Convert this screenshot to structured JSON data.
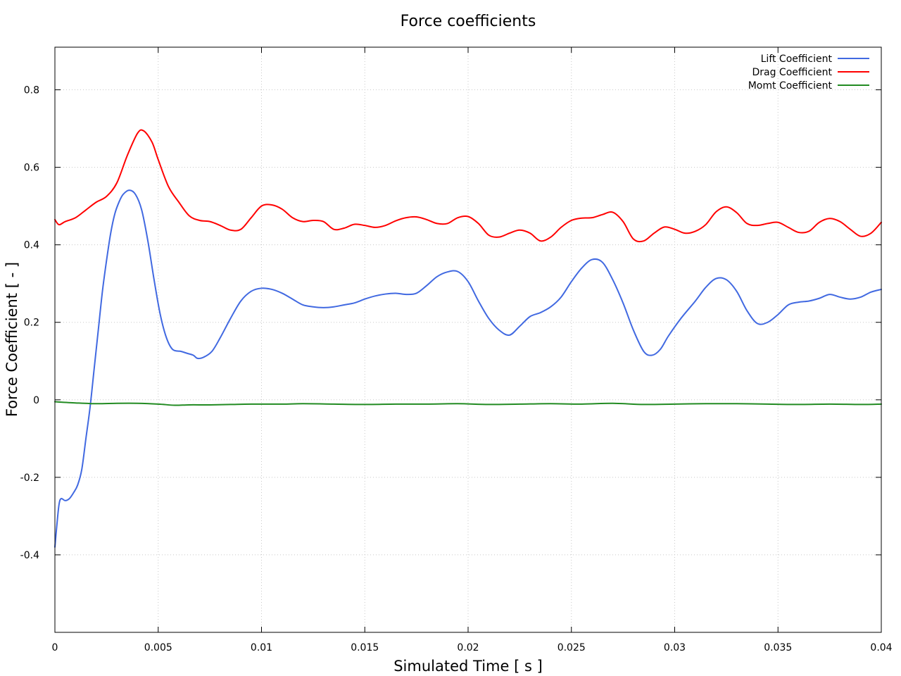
{
  "chart_data": {
    "type": "line",
    "title": "Force coefficients",
    "xlabel": "Simulated Time [ s ]",
    "ylabel": "Force Coefficient [ - ]",
    "xlim": [
      0,
      0.04
    ],
    "ylim": [
      -0.6,
      0.91
    ],
    "xticks": [
      0,
      0.005,
      0.01,
      0.015,
      0.02,
      0.025,
      0.03,
      0.035,
      0.04
    ],
    "xtick_labels": [
      "0",
      "0.005",
      "0.01",
      "0.015",
      "0.02",
      "0.025",
      "0.03",
      "0.035",
      "0.04"
    ],
    "yticks": [
      -0.4,
      -0.2,
      0,
      0.2,
      0.4,
      0.6,
      0.8
    ],
    "ytick_labels": [
      "-0.4",
      "-0.2",
      "0",
      "0.2",
      "0.4",
      "0.6",
      "0.8"
    ],
    "grid": true,
    "legend_position": "top-right",
    "series": [
      {
        "name": "Lift Coefficient",
        "color": "#4169e1",
        "points": [
          [
            0,
            -0.38
          ],
          [
            0.0001,
            -0.32
          ],
          [
            0.0002,
            -0.27
          ],
          [
            0.0003,
            -0.255
          ],
          [
            0.0005,
            -0.26
          ],
          [
            0.0007,
            -0.255
          ],
          [
            0.0009,
            -0.24
          ],
          [
            0.0011,
            -0.22
          ],
          [
            0.0013,
            -0.18
          ],
          [
            0.0015,
            -0.1
          ],
          [
            0.0017,
            -0.02
          ],
          [
            0.0019,
            0.08
          ],
          [
            0.0021,
            0.18
          ],
          [
            0.0023,
            0.28
          ],
          [
            0.0025,
            0.36
          ],
          [
            0.0027,
            0.43
          ],
          [
            0.0029,
            0.48
          ],
          [
            0.0031,
            0.51
          ],
          [
            0.0033,
            0.53
          ],
          [
            0.0036,
            0.541
          ],
          [
            0.0039,
            0.53
          ],
          [
            0.0042,
            0.49
          ],
          [
            0.0045,
            0.41
          ],
          [
            0.0048,
            0.31
          ],
          [
            0.0051,
            0.22
          ],
          [
            0.0054,
            0.16
          ],
          [
            0.0057,
            0.13
          ],
          [
            0.0061,
            0.125
          ],
          [
            0.0064,
            0.12
          ],
          [
            0.0067,
            0.115
          ],
          [
            0.0069,
            0.107
          ],
          [
            0.0072,
            0.11
          ],
          [
            0.0076,
            0.125
          ],
          [
            0.008,
            0.16
          ],
          [
            0.0085,
            0.21
          ],
          [
            0.009,
            0.255
          ],
          [
            0.0095,
            0.28
          ],
          [
            0.01,
            0.288
          ],
          [
            0.0105,
            0.285
          ],
          [
            0.011,
            0.275
          ],
          [
            0.0115,
            0.26
          ],
          [
            0.012,
            0.245
          ],
          [
            0.0125,
            0.24
          ],
          [
            0.013,
            0.238
          ],
          [
            0.0135,
            0.24
          ],
          [
            0.014,
            0.245
          ],
          [
            0.0145,
            0.25
          ],
          [
            0.015,
            0.26
          ],
          [
            0.0155,
            0.268
          ],
          [
            0.016,
            0.273
          ],
          [
            0.0165,
            0.275
          ],
          [
            0.017,
            0.272
          ],
          [
            0.0175,
            0.275
          ],
          [
            0.018,
            0.295
          ],
          [
            0.0185,
            0.318
          ],
          [
            0.019,
            0.33
          ],
          [
            0.0195,
            0.331
          ],
          [
            0.02,
            0.305
          ],
          [
            0.0205,
            0.255
          ],
          [
            0.021,
            0.21
          ],
          [
            0.0215,
            0.18
          ],
          [
            0.022,
            0.167
          ],
          [
            0.0225,
            0.19
          ],
          [
            0.023,
            0.215
          ],
          [
            0.0235,
            0.225
          ],
          [
            0.024,
            0.24
          ],
          [
            0.0245,
            0.265
          ],
          [
            0.025,
            0.305
          ],
          [
            0.0255,
            0.34
          ],
          [
            0.026,
            0.362
          ],
          [
            0.0265,
            0.355
          ],
          [
            0.027,
            0.31
          ],
          [
            0.0275,
            0.25
          ],
          [
            0.028,
            0.18
          ],
          [
            0.0285,
            0.125
          ],
          [
            0.0289,
            0.115
          ],
          [
            0.0293,
            0.13
          ],
          [
            0.0297,
            0.165
          ],
          [
            0.0303,
            0.21
          ],
          [
            0.031,
            0.255
          ],
          [
            0.0315,
            0.29
          ],
          [
            0.032,
            0.313
          ],
          [
            0.0325,
            0.31
          ],
          [
            0.033,
            0.28
          ],
          [
            0.0335,
            0.23
          ],
          [
            0.034,
            0.197
          ],
          [
            0.0345,
            0.2
          ],
          [
            0.035,
            0.22
          ],
          [
            0.0355,
            0.245
          ],
          [
            0.036,
            0.252
          ],
          [
            0.0365,
            0.255
          ],
          [
            0.037,
            0.262
          ],
          [
            0.0375,
            0.272
          ],
          [
            0.038,
            0.265
          ],
          [
            0.0385,
            0.26
          ],
          [
            0.039,
            0.265
          ],
          [
            0.0395,
            0.278
          ],
          [
            0.04,
            0.285
          ]
        ]
      },
      {
        "name": "Drag Coefficient",
        "color": "#ff0000",
        "points": [
          [
            0,
            0.465
          ],
          [
            0.0002,
            0.452
          ],
          [
            0.0005,
            0.46
          ],
          [
            0.001,
            0.47
          ],
          [
            0.0015,
            0.49
          ],
          [
            0.002,
            0.51
          ],
          [
            0.0025,
            0.525
          ],
          [
            0.003,
            0.56
          ],
          [
            0.0035,
            0.63
          ],
          [
            0.004,
            0.688
          ],
          [
            0.0043,
            0.694
          ],
          [
            0.0047,
            0.665
          ],
          [
            0.005,
            0.62
          ],
          [
            0.0055,
            0.55
          ],
          [
            0.006,
            0.51
          ],
          [
            0.0065,
            0.475
          ],
          [
            0.007,
            0.463
          ],
          [
            0.0075,
            0.46
          ],
          [
            0.008,
            0.45
          ],
          [
            0.0085,
            0.438
          ],
          [
            0.009,
            0.44
          ],
          [
            0.0095,
            0.47
          ],
          [
            0.01,
            0.5
          ],
          [
            0.0105,
            0.503
          ],
          [
            0.011,
            0.492
          ],
          [
            0.0115,
            0.47
          ],
          [
            0.012,
            0.46
          ],
          [
            0.0125,
            0.463
          ],
          [
            0.013,
            0.46
          ],
          [
            0.0135,
            0.44
          ],
          [
            0.014,
            0.443
          ],
          [
            0.0145,
            0.453
          ],
          [
            0.015,
            0.45
          ],
          [
            0.0155,
            0.445
          ],
          [
            0.016,
            0.45
          ],
          [
            0.0165,
            0.462
          ],
          [
            0.017,
            0.47
          ],
          [
            0.0175,
            0.472
          ],
          [
            0.018,
            0.465
          ],
          [
            0.0185,
            0.455
          ],
          [
            0.019,
            0.455
          ],
          [
            0.0195,
            0.47
          ],
          [
            0.02,
            0.473
          ],
          [
            0.0205,
            0.455
          ],
          [
            0.021,
            0.425
          ],
          [
            0.0215,
            0.42
          ],
          [
            0.022,
            0.43
          ],
          [
            0.0225,
            0.438
          ],
          [
            0.023,
            0.43
          ],
          [
            0.0235,
            0.41
          ],
          [
            0.024,
            0.42
          ],
          [
            0.0245,
            0.445
          ],
          [
            0.025,
            0.463
          ],
          [
            0.0255,
            0.469
          ],
          [
            0.026,
            0.47
          ],
          [
            0.0265,
            0.478
          ],
          [
            0.027,
            0.484
          ],
          [
            0.0275,
            0.46
          ],
          [
            0.028,
            0.415
          ],
          [
            0.0285,
            0.41
          ],
          [
            0.029,
            0.43
          ],
          [
            0.0295,
            0.446
          ],
          [
            0.03,
            0.44
          ],
          [
            0.0305,
            0.43
          ],
          [
            0.031,
            0.435
          ],
          [
            0.0315,
            0.452
          ],
          [
            0.032,
            0.485
          ],
          [
            0.0325,
            0.498
          ],
          [
            0.033,
            0.483
          ],
          [
            0.0335,
            0.455
          ],
          [
            0.034,
            0.45
          ],
          [
            0.0345,
            0.455
          ],
          [
            0.035,
            0.458
          ],
          [
            0.0355,
            0.445
          ],
          [
            0.036,
            0.432
          ],
          [
            0.0365,
            0.435
          ],
          [
            0.037,
            0.458
          ],
          [
            0.0375,
            0.468
          ],
          [
            0.038,
            0.46
          ],
          [
            0.0385,
            0.44
          ],
          [
            0.039,
            0.422
          ],
          [
            0.0395,
            0.43
          ],
          [
            0.04,
            0.458
          ]
        ]
      },
      {
        "name": "Momt Coefficient",
        "color": "#228b22",
        "points": [
          [
            0,
            -0.005
          ],
          [
            0.001,
            -0.008
          ],
          [
            0.002,
            -0.01
          ],
          [
            0.003,
            -0.009
          ],
          [
            0.004,
            -0.009
          ],
          [
            0.005,
            -0.011
          ],
          [
            0.0058,
            -0.014
          ],
          [
            0.0065,
            -0.013
          ],
          [
            0.0075,
            -0.013
          ],
          [
            0.0085,
            -0.012
          ],
          [
            0.0095,
            -0.011
          ],
          [
            0.011,
            -0.011
          ],
          [
            0.012,
            -0.01
          ],
          [
            0.0135,
            -0.011
          ],
          [
            0.015,
            -0.012
          ],
          [
            0.0165,
            -0.011
          ],
          [
            0.018,
            -0.011
          ],
          [
            0.0195,
            -0.01
          ],
          [
            0.021,
            -0.012
          ],
          [
            0.0225,
            -0.011
          ],
          [
            0.024,
            -0.01
          ],
          [
            0.0255,
            -0.011
          ],
          [
            0.027,
            -0.009
          ],
          [
            0.0285,
            -0.012
          ],
          [
            0.03,
            -0.011
          ],
          [
            0.0315,
            -0.01
          ],
          [
            0.033,
            -0.01
          ],
          [
            0.0345,
            -0.011
          ],
          [
            0.036,
            -0.012
          ],
          [
            0.0375,
            -0.011
          ],
          [
            0.039,
            -0.012
          ],
          [
            0.04,
            -0.011
          ]
        ]
      }
    ]
  }
}
